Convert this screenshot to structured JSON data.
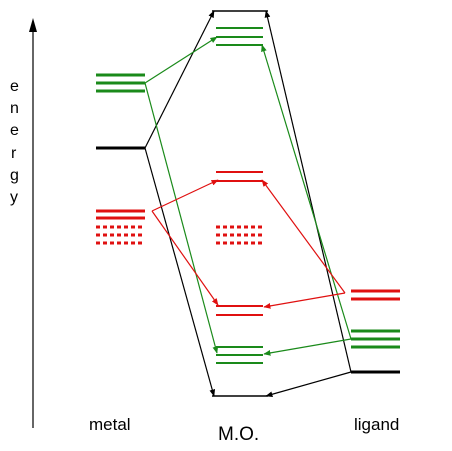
{
  "axis": {
    "label_letters": [
      "e",
      "n",
      "e",
      "r",
      "g",
      "y"
    ]
  },
  "columns": {
    "metal": "metal",
    "mo": "M.O.",
    "ligand": "ligand"
  },
  "colors": {
    "black": "#000000",
    "green": "#1a8a1a",
    "red": "#e01010"
  }
}
